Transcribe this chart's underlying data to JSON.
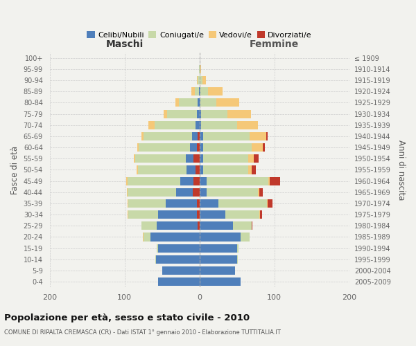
{
  "age_groups": [
    "0-4",
    "5-9",
    "10-14",
    "15-19",
    "20-24",
    "25-29",
    "30-34",
    "35-39",
    "40-44",
    "45-49",
    "50-54",
    "55-59",
    "60-64",
    "65-69",
    "70-74",
    "75-79",
    "80-84",
    "85-89",
    "90-94",
    "95-99",
    "100+"
  ],
  "birth_years": [
    "2005-2009",
    "2000-2004",
    "1995-1999",
    "1990-1994",
    "1985-1989",
    "1980-1984",
    "1975-1979",
    "1970-1974",
    "1965-1969",
    "1960-1964",
    "1955-1959",
    "1950-1954",
    "1945-1949",
    "1940-1944",
    "1935-1939",
    "1930-1934",
    "1925-1929",
    "1920-1924",
    "1915-1919",
    "1910-1914",
    "≤ 1909"
  ],
  "males": {
    "celibi": [
      55,
      50,
      58,
      55,
      65,
      55,
      52,
      42,
      22,
      18,
      12,
      10,
      10,
      8,
      5,
      3,
      2,
      1,
      0,
      0,
      0
    ],
    "coniugati": [
      0,
      0,
      1,
      2,
      10,
      20,
      40,
      50,
      65,
      70,
      65,
      68,
      68,
      65,
      55,
      40,
      25,
      5,
      2,
      1,
      0
    ],
    "vedovi": [
      0,
      0,
      0,
      0,
      1,
      0,
      1,
      1,
      1,
      2,
      2,
      2,
      2,
      2,
      8,
      5,
      5,
      5,
      1,
      0,
      0
    ],
    "divorziati": [
      0,
      0,
      0,
      0,
      0,
      2,
      3,
      3,
      9,
      8,
      5,
      8,
      3,
      2,
      0,
      0,
      0,
      0,
      0,
      0,
      0
    ]
  },
  "females": {
    "nubili": [
      55,
      48,
      50,
      50,
      55,
      45,
      35,
      25,
      10,
      10,
      5,
      5,
      5,
      5,
      2,
      2,
      1,
      1,
      0,
      0,
      0
    ],
    "coniugate": [
      0,
      0,
      1,
      2,
      12,
      25,
      45,
      65,
      68,
      82,
      60,
      60,
      65,
      62,
      48,
      35,
      22,
      10,
      4,
      1,
      0
    ],
    "vedove": [
      0,
      0,
      0,
      0,
      0,
      0,
      1,
      1,
      2,
      2,
      5,
      8,
      15,
      22,
      28,
      32,
      30,
      20,
      5,
      1,
      0
    ],
    "divorziate": [
      0,
      0,
      0,
      0,
      0,
      1,
      3,
      7,
      5,
      14,
      5,
      6,
      2,
      2,
      0,
      0,
      0,
      0,
      0,
      0,
      0
    ]
  },
  "colors": {
    "celibi_nubili": "#4f7fba",
    "coniugati": "#c8d9a8",
    "vedovi": "#f5c878",
    "divorziati": "#c0392b"
  },
  "title": "Popolazione per età, sesso e stato civile - 2010",
  "subtitle": "COMUNE DI RIPALTA CREMASCA (CR) - Dati ISTAT 1° gennaio 2010 - Elaborazione TUTTITALIA.IT",
  "xlabel_left": "Maschi",
  "xlabel_right": "Femmine",
  "ylabel_left": "Fasce di età",
  "ylabel_right": "Anni di nascita",
  "xlim": 200,
  "bg_color": "#f2f2ee",
  "legend_labels": [
    "Celibi/Nubili",
    "Coniugati/e",
    "Vedovi/e",
    "Divorziati/e"
  ]
}
